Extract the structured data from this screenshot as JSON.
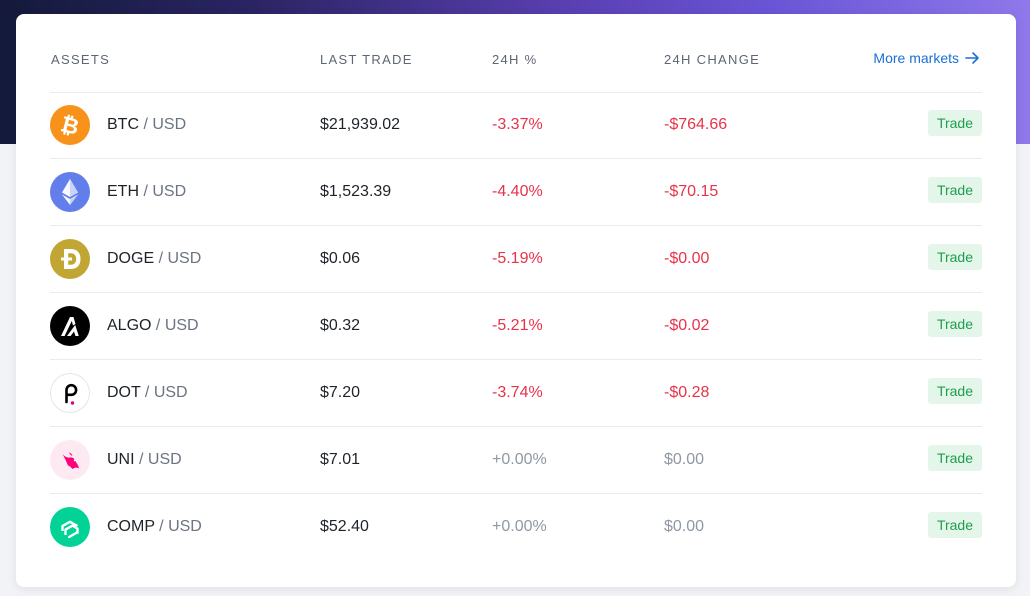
{
  "header": {
    "assets": "ASSETS",
    "last_trade": "LAST TRADE",
    "pct_24h": "24H %",
    "change_24h": "24H CHANGE",
    "more_markets": "More markets"
  },
  "colors": {
    "negative": "#e8324a",
    "neutral": "#8f98a3",
    "link": "#1a6fd8",
    "trade_bg": "#e4f6ea",
    "trade_text": "#1f9d4d"
  },
  "rows": [
    {
      "base": "BTC",
      "sep": " / ",
      "quote": "USD",
      "last": "$21,939.02",
      "pct": "-3.37%",
      "change": "-$764.66",
      "trend": "neg",
      "icon": "bitcoin-icon",
      "trade": "Trade"
    },
    {
      "base": "ETH",
      "sep": " / ",
      "quote": "USD",
      "last": "$1,523.39",
      "pct": "-4.40%",
      "change": "-$70.15",
      "trend": "neg",
      "icon": "ethereum-icon",
      "trade": "Trade"
    },
    {
      "base": "DOGE",
      "sep": " / ",
      "quote": "USD",
      "last": "$0.06",
      "pct": "-5.19%",
      "change": "-$0.00",
      "trend": "neg",
      "icon": "dogecoin-icon",
      "trade": "Trade"
    },
    {
      "base": "ALGO",
      "sep": " / ",
      "quote": "USD",
      "last": "$0.32",
      "pct": "-5.21%",
      "change": "-$0.02",
      "trend": "neg",
      "icon": "algorand-icon",
      "trade": "Trade"
    },
    {
      "base": "DOT",
      "sep": " / ",
      "quote": "USD",
      "last": "$7.20",
      "pct": "-3.74%",
      "change": "-$0.28",
      "trend": "neg",
      "icon": "polkadot-icon",
      "trade": "Trade"
    },
    {
      "base": "UNI",
      "sep": " / ",
      "quote": "USD",
      "last": "$7.01",
      "pct": "+0.00%",
      "change": "$0.00",
      "trend": "flat",
      "icon": "uniswap-icon",
      "trade": "Trade"
    },
    {
      "base": "COMP",
      "sep": " / ",
      "quote": "USD",
      "last": "$52.40",
      "pct": "+0.00%",
      "change": "$0.00",
      "trend": "flat",
      "icon": "compound-icon",
      "trade": "Trade"
    }
  ]
}
